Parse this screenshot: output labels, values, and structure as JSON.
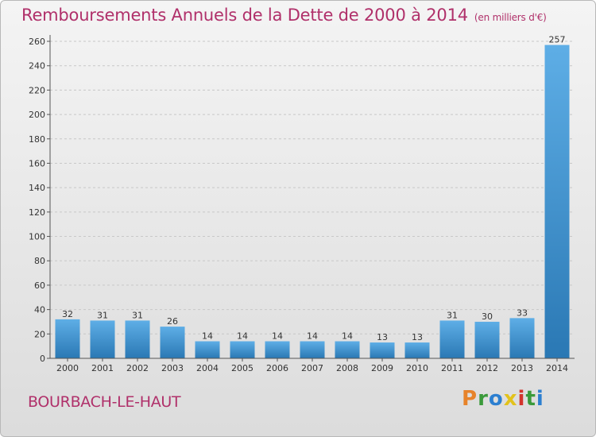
{
  "header": {
    "title": "Remboursements Annuels de la Dette de 2000 à 2014",
    "unit": "(en milliers d'€)"
  },
  "footer": {
    "commune": "BOURBACH-LE-HAUT",
    "logo_text": "Proxiti"
  },
  "colors": {
    "title": "#b0306a",
    "bar_light": "#5eaee6",
    "bar_dark": "#2a78b4",
    "logo": [
      "#e7832a",
      "#3a9a3a",
      "#2c7fd0",
      "#e2c21c",
      "#d2342c",
      "#3a9a3a",
      "#2c7fd0"
    ]
  },
  "chart_data": {
    "type": "bar",
    "categories": [
      "2000",
      "2001",
      "2002",
      "2003",
      "2004",
      "2005",
      "2006",
      "2007",
      "2008",
      "2009",
      "2010",
      "2011",
      "2012",
      "2013",
      "2014"
    ],
    "values": [
      32,
      31,
      31,
      26,
      14,
      14,
      14,
      14,
      14,
      13,
      13,
      31,
      30,
      33,
      257
    ],
    "ylim": [
      0,
      260
    ],
    "yticks": [
      0,
      20,
      40,
      60,
      80,
      100,
      120,
      140,
      160,
      180,
      200,
      220,
      240,
      260
    ],
    "grid": true
  }
}
